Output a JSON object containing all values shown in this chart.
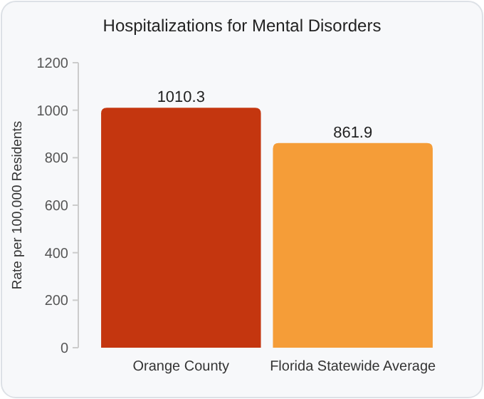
{
  "chart_data": {
    "type": "bar",
    "title": "Hospitalizations for Mental Disorders",
    "ylabel": "Rate per 100,000 Residents",
    "categories": [
      "Orange County",
      "Florida Statewide Average"
    ],
    "values": [
      1010.3,
      861.9
    ],
    "colors": [
      "#c4360f",
      "#f59d38"
    ],
    "ylim": [
      0,
      1200
    ],
    "yticks": [
      0,
      200,
      400,
      600,
      800,
      1000,
      1200
    ],
    "data_labels": true
  }
}
